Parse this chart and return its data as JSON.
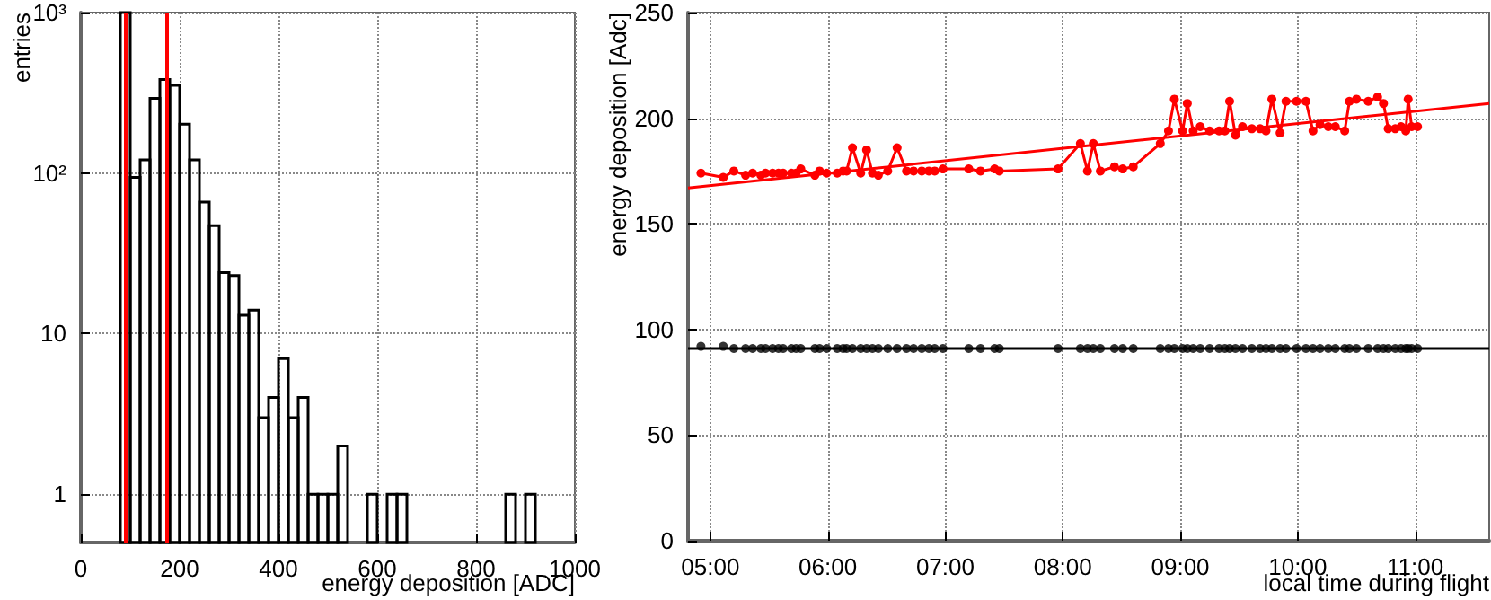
{
  "chart_data": [
    {
      "type": "histogram",
      "xlabel": "energy deposition [ADC]",
      "ylabel": "entries",
      "log": "y",
      "grid": true,
      "xlim": [
        0,
        1000
      ],
      "xticks": [
        0,
        200,
        400,
        600,
        800,
        1000
      ],
      "ylim": [
        0.5,
        1000
      ],
      "yticks": [
        1,
        10,
        {
          "value": 100,
          "label": "10²"
        },
        {
          "value": 1000,
          "label": "10³"
        }
      ],
      "bins": [
        80,
        100,
        120,
        140,
        160,
        180,
        200,
        220,
        240,
        260,
        280,
        300,
        320,
        340,
        360,
        380,
        400,
        420,
        440,
        460,
        480,
        500,
        520,
        540,
        560,
        580,
        600,
        620,
        640,
        660,
        680,
        700,
        720,
        740,
        760,
        780,
        800,
        820,
        840,
        860,
        880,
        900,
        920
      ],
      "values": [
        1000,
        94,
        121,
        292,
        383,
        352,
        202,
        121,
        66,
        47,
        24,
        23,
        13,
        14,
        3,
        4,
        7,
        3,
        4,
        1,
        1,
        1,
        2,
        null,
        null,
        1,
        null,
        1,
        1,
        null,
        null,
        null,
        null,
        null,
        null,
        null,
        null,
        null,
        null,
        1,
        null,
        1
      ],
      "color": "#000000",
      "ref_lines": [
        {
          "axis": "x",
          "value": 90,
          "color": "#ff0000"
        },
        {
          "axis": "x",
          "value": 172,
          "color": "#ff0000"
        }
      ]
    },
    {
      "type": "line",
      "xlabel": "local time during flight",
      "ylabel": "energy deposition [Adc]",
      "grid": true,
      "marker": "circle",
      "line_style": "solid",
      "xlim": [
        4.81,
        11.63
      ],
      "xticks": [
        {
          "value": 5,
          "label": "05:00"
        },
        {
          "value": 6,
          "label": "06:00"
        },
        {
          "value": 7,
          "label": "07:00"
        },
        {
          "value": 8,
          "label": "08:00"
        },
        {
          "value": 9,
          "label": "09:00"
        },
        {
          "value": 10,
          "label": "10:00"
        },
        {
          "value": 11,
          "label": "11:00"
        }
      ],
      "ylim": [
        0,
        250
      ],
      "yticks": [
        0,
        50,
        100,
        150,
        200,
        250
      ],
      "series": [
        {
          "color": "#ff0000",
          "x": [
            4.92,
            5.11,
            5.2,
            5.3,
            5.36,
            5.43,
            5.47,
            5.53,
            5.58,
            5.62,
            5.69,
            5.73,
            5.77,
            5.89,
            5.93,
            5.99,
            6.08,
            6.13,
            6.16,
            6.21,
            6.28,
            6.33,
            6.38,
            6.43,
            6.51,
            6.59,
            6.67,
            6.73,
            6.8,
            6.86,
            6.91,
            6.98,
            7.2,
            7.3,
            7.42,
            7.46,
            7.96,
            8.15,
            8.21,
            8.26,
            8.32,
            8.44,
            8.51,
            8.6,
            8.83,
            8.9,
            8.95,
            9.02,
            9.06,
            9.11,
            9.17,
            9.25,
            9.33,
            9.38,
            9.42,
            9.47,
            9.53,
            9.61,
            9.68,
            9.73,
            9.78,
            9.85,
            9.9,
            9.99,
            10.07,
            10.13,
            10.19,
            10.26,
            10.32,
            10.4,
            10.44,
            10.5,
            10.6,
            10.68,
            10.73,
            10.77,
            10.83,
            10.88,
            10.92,
            10.94,
            10.97,
            11.02
          ],
          "values": [
            174,
            172,
            175,
            173,
            174,
            173,
            174,
            174,
            174,
            174,
            174,
            174,
            176,
            173,
            175,
            174,
            174,
            175,
            175,
            186,
            174,
            185,
            174,
            173,
            175,
            186,
            175,
            175,
            175,
            175,
            175,
            176,
            176,
            175,
            176,
            175,
            176,
            188,
            175,
            188,
            175,
            177,
            176,
            177,
            188,
            194,
            209,
            194,
            207,
            194,
            196,
            194,
            194,
            194,
            208,
            192,
            196,
            195,
            195,
            194,
            209,
            193,
            208,
            208,
            208,
            194,
            197,
            196,
            196,
            194,
            208,
            209,
            208,
            210,
            207,
            195,
            195,
            196,
            194,
            209,
            196,
            196
          ]
        },
        {
          "type": "scatter",
          "color": "#000000",
          "x": [
            4.92,
            5.11,
            5.2,
            5.3,
            5.36,
            5.43,
            5.47,
            5.53,
            5.58,
            5.62,
            5.69,
            5.73,
            5.77,
            5.89,
            5.93,
            5.99,
            6.08,
            6.13,
            6.16,
            6.21,
            6.28,
            6.33,
            6.38,
            6.43,
            6.51,
            6.59,
            6.67,
            6.73,
            6.8,
            6.86,
            6.91,
            6.98,
            7.2,
            7.3,
            7.42,
            7.46,
            7.96,
            8.15,
            8.21,
            8.26,
            8.32,
            8.44,
            8.51,
            8.6,
            8.83,
            8.9,
            8.95,
            9.02,
            9.06,
            9.11,
            9.17,
            9.25,
            9.33,
            9.38,
            9.42,
            9.47,
            9.53,
            9.61,
            9.68,
            9.73,
            9.78,
            9.85,
            9.9,
            9.99,
            10.07,
            10.13,
            10.19,
            10.26,
            10.32,
            10.4,
            10.44,
            10.5,
            10.6,
            10.68,
            10.73,
            10.77,
            10.83,
            10.88,
            10.92,
            10.94,
            10.97,
            11.02
          ],
          "values": [
            92,
            92,
            91,
            91,
            91,
            91,
            91,
            91,
            91,
            91,
            91,
            91,
            91,
            91,
            91,
            91,
            91,
            91,
            91,
            91,
            91,
            91,
            91,
            91,
            91,
            91,
            91,
            91,
            91,
            91,
            91,
            91,
            91,
            91,
            91,
            91,
            91,
            91,
            91,
            91,
            91,
            91,
            91,
            91,
            91,
            91,
            91,
            91,
            91,
            91,
            91,
            91,
            91,
            91,
            91,
            91,
            91,
            91,
            91,
            91,
            91,
            91,
            91,
            91,
            91,
            91,
            91,
            91,
            91,
            91,
            91,
            91,
            91,
            91,
            91,
            91,
            91,
            91,
            91,
            91,
            91,
            91
          ]
        },
        {
          "type": "line",
          "marker": "none",
          "color": "#ff0000",
          "x": [
            4.81,
            11.63
          ],
          "values": [
            167,
            207
          ]
        },
        {
          "type": "line",
          "marker": "none",
          "color": "#000000",
          "x": [
            4.81,
            11.63
          ],
          "values": [
            91,
            91
          ]
        }
      ]
    }
  ]
}
